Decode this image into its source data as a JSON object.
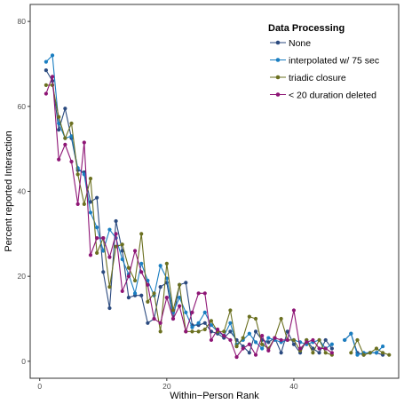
{
  "chart_data": {
    "type": "line",
    "xlabel": "Within−Person Rank",
    "ylabel": "Percent reported Interaction",
    "xlim": [
      -1.5,
      56.5
    ],
    "ylim": [
      -4,
      84
    ],
    "x_ticks": [
      0,
      20,
      40
    ],
    "y_ticks": [
      0,
      20,
      40,
      60,
      80
    ],
    "grid": false,
    "legend": {
      "title": "Data Processing",
      "placement": "top-right"
    },
    "series": [
      {
        "name": "None",
        "color": "#2b4a7f",
        "points": [
          [
            1,
            68.5
          ],
          [
            2,
            66
          ],
          [
            3,
            54.5
          ],
          [
            4,
            59.5
          ],
          [
            5,
            52.5
          ],
          [
            6,
            45
          ],
          [
            7,
            44.5
          ],
          [
            8,
            37.5
          ],
          [
            9,
            38.5
          ],
          [
            10,
            21
          ],
          [
            11,
            12.5
          ],
          [
            12,
            33
          ],
          [
            13,
            26
          ],
          [
            14,
            15
          ],
          [
            15,
            15.5
          ],
          [
            16,
            15.5
          ],
          [
            17,
            9
          ],
          [
            18,
            10
          ],
          [
            19,
            17.5
          ],
          [
            20,
            18.5
          ],
          [
            21,
            10
          ],
          [
            22,
            18
          ],
          [
            23,
            18.5
          ],
          [
            24,
            8.5
          ],
          [
            25,
            8.5
          ],
          [
            26,
            9
          ],
          [
            27,
            7
          ],
          [
            28,
            6.5
          ],
          [
            29,
            5.5
          ],
          [
            30,
            7
          ],
          [
            31,
            5
          ],
          [
            32,
            3.5
          ],
          [
            33,
            2
          ],
          [
            34,
            7
          ],
          [
            35,
            5
          ],
          [
            36,
            4.5
          ],
          [
            37,
            5.5
          ],
          [
            38,
            2
          ],
          [
            39,
            7
          ],
          [
            40,
            4
          ],
          [
            41,
            2
          ],
          [
            42,
            5
          ],
          [
            43,
            3
          ],
          [
            44,
            2
          ],
          [
            45,
            5
          ],
          [
            46,
            3
          ],
          [
            48,
            5
          ],
          [
            49,
            6.5
          ],
          [
            50,
            2
          ],
          [
            51,
            1.5
          ],
          [
            52,
            2
          ],
          [
            53,
            2
          ],
          [
            54,
            1.5
          ]
        ]
      },
      {
        "name": "interpolated w/ 75 sec",
        "color": "#1a7ec1",
        "points": [
          [
            1,
            70.5
          ],
          [
            2,
            72
          ],
          [
            3,
            56
          ],
          [
            4,
            52.5
          ],
          [
            5,
            53
          ],
          [
            6,
            45.5
          ],
          [
            7,
            44
          ],
          [
            8,
            35
          ],
          [
            9,
            31.5
          ],
          [
            10,
            26
          ],
          [
            11,
            31
          ],
          [
            12,
            29
          ],
          [
            13,
            24
          ],
          [
            14,
            20.5
          ],
          [
            15,
            16
          ],
          [
            16,
            23
          ],
          [
            17,
            19
          ],
          [
            18,
            15.5
          ],
          [
            19,
            22.5
          ],
          [
            20,
            19.5
          ],
          [
            21,
            11.5
          ],
          [
            22,
            15
          ],
          [
            23,
            11.5
          ],
          [
            24,
            8
          ],
          [
            25,
            9
          ],
          [
            26,
            11.5
          ],
          [
            27,
            8.5
          ],
          [
            28,
            7
          ],
          [
            29,
            6
          ],
          [
            30,
            9
          ],
          [
            31,
            4
          ],
          [
            32,
            5
          ],
          [
            33,
            6.5
          ],
          [
            34,
            4.5
          ],
          [
            35,
            3
          ],
          [
            36,
            5.5
          ],
          [
            37,
            5
          ],
          [
            38,
            4.5
          ],
          [
            39,
            5
          ],
          [
            40,
            5
          ],
          [
            41,
            4.5
          ],
          [
            42,
            4
          ],
          [
            43,
            4.5
          ],
          [
            44,
            5
          ],
          [
            45,
            3
          ],
          [
            46,
            4
          ],
          [
            48,
            5
          ],
          [
            49,
            6.5
          ],
          [
            50,
            1.5
          ],
          [
            51,
            2
          ],
          [
            52,
            2
          ],
          [
            53,
            2
          ],
          [
            54,
            3.5
          ]
        ]
      },
      {
        "name": "triadic closure",
        "color": "#6b7020",
        "points": [
          [
            1,
            65
          ],
          [
            2,
            65
          ],
          [
            3,
            57.5
          ],
          [
            4,
            52.5
          ],
          [
            5,
            56
          ],
          [
            6,
            44
          ],
          [
            7,
            37
          ],
          [
            8,
            43
          ],
          [
            9,
            25.5
          ],
          [
            10,
            29
          ],
          [
            11,
            17.5
          ],
          [
            12,
            27
          ],
          [
            13,
            27.5
          ],
          [
            14,
            22
          ],
          [
            15,
            19
          ],
          [
            16,
            30
          ],
          [
            17,
            14
          ],
          [
            18,
            16
          ],
          [
            19,
            7
          ],
          [
            20,
            23
          ],
          [
            21,
            12
          ],
          [
            22,
            18
          ],
          [
            23,
            7
          ],
          [
            24,
            7
          ],
          [
            25,
            7
          ],
          [
            26,
            7.5
          ],
          [
            27,
            9.5
          ],
          [
            28,
            7
          ],
          [
            29,
            7
          ],
          [
            30,
            12
          ],
          [
            31,
            3.5
          ],
          [
            32,
            5.5
          ],
          [
            33,
            10.5
          ],
          [
            34,
            10
          ],
          [
            35,
            4
          ],
          [
            36,
            3
          ],
          [
            37,
            5.5
          ],
          [
            38,
            10
          ],
          [
            39,
            5
          ],
          [
            40,
            5
          ],
          [
            41,
            2.5
          ],
          [
            42,
            5
          ],
          [
            43,
            2
          ],
          [
            44,
            5
          ],
          [
            45,
            2
          ],
          [
            46,
            1.5
          ],
          [
            49,
            2
          ],
          [
            50,
            5
          ],
          [
            51,
            1.5
          ],
          [
            52,
            2
          ],
          [
            53,
            3
          ],
          [
            54,
            2
          ],
          [
            55,
            1.5
          ]
        ]
      },
      {
        "name": "< 20 duration deleted",
        "color": "#8e1575",
        "points": [
          [
            1,
            63
          ],
          [
            2,
            67
          ],
          [
            3,
            47.5
          ],
          [
            4,
            51
          ],
          [
            5,
            47
          ],
          [
            6,
            37
          ],
          [
            7,
            51.5
          ],
          [
            8,
            25
          ],
          [
            9,
            29
          ],
          [
            10,
            29
          ],
          [
            11,
            24.5
          ],
          [
            12,
            30
          ],
          [
            13,
            16.5
          ],
          [
            14,
            20
          ],
          [
            15,
            26
          ],
          [
            16,
            21
          ],
          [
            17,
            18
          ],
          [
            18,
            10
          ],
          [
            19,
            9
          ],
          [
            20,
            15
          ],
          [
            21,
            10
          ],
          [
            22,
            13
          ],
          [
            23,
            7
          ],
          [
            24,
            11.5
          ],
          [
            25,
            16
          ],
          [
            26,
            16
          ],
          [
            27,
            5
          ],
          [
            28,
            7.5
          ],
          [
            29,
            6
          ],
          [
            30,
            5
          ],
          [
            31,
            1
          ],
          [
            32,
            3
          ],
          [
            33,
            4
          ],
          [
            34,
            1.5
          ],
          [
            35,
            6
          ],
          [
            36,
            2.5
          ],
          [
            37,
            5.5
          ],
          [
            38,
            5
          ],
          [
            39,
            5
          ],
          [
            40,
            12
          ],
          [
            41,
            3
          ],
          [
            42,
            4.5
          ],
          [
            43,
            5
          ],
          [
            44,
            3
          ],
          [
            45,
            3
          ],
          [
            46,
            2
          ]
        ]
      }
    ]
  }
}
